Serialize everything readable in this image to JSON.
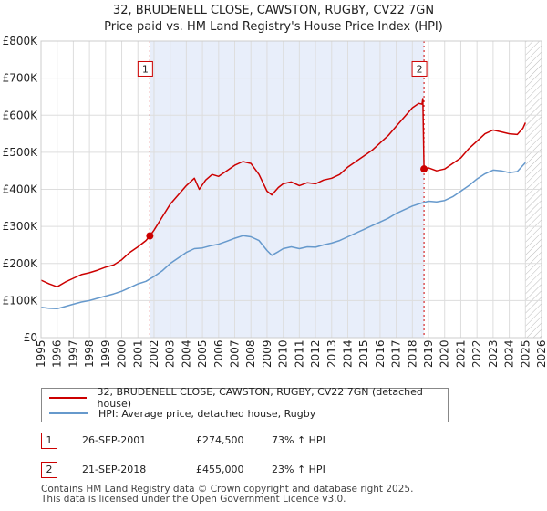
{
  "header": {
    "title": "32, BRUDENELL CLOSE, CAWSTON, RUGBY, CV22 7GN",
    "subtitle": "Price paid vs. HM Land Registry's House Price Index (HPI)"
  },
  "colors": {
    "property": "#cc0000",
    "hpi": "#6699cc",
    "shade": "#e8eefa",
    "grid": "#dddddd",
    "hatch": "#bbbbbb"
  },
  "chart_data": {
    "type": "line",
    "xlim": [
      1995,
      2026
    ],
    "ylim": [
      0,
      800000
    ],
    "grid": true,
    "y_ticks": [
      {
        "value": 0,
        "label": "£0"
      },
      {
        "value": 100000,
        "label": "£100K"
      },
      {
        "value": 200000,
        "label": "£200K"
      },
      {
        "value": 300000,
        "label": "£300K"
      },
      {
        "value": 400000,
        "label": "£400K"
      },
      {
        "value": 500000,
        "label": "£500K"
      },
      {
        "value": 600000,
        "label": "£600K"
      },
      {
        "value": 700000,
        "label": "£700K"
      },
      {
        "value": 800000,
        "label": "£800K"
      }
    ],
    "x_ticks": [
      "1995",
      "1996",
      "1997",
      "1998",
      "1999",
      "2000",
      "2001",
      "2002",
      "2003",
      "2004",
      "2005",
      "2006",
      "2007",
      "2008",
      "2009",
      "2010",
      "2011",
      "2012",
      "2013",
      "2014",
      "2015",
      "2016",
      "2017",
      "2018",
      "2019",
      "2020",
      "2021",
      "2022",
      "2023",
      "2024",
      "2025",
      "2026"
    ],
    "shaded_range": [
      2001.74,
      2018.72
    ],
    "hatch_from": 2025.0,
    "series": [
      {
        "name": "32, BRUDENELL CLOSE, CAWSTON, RUGBY, CV22 7GN (detached house)",
        "color": "#cc0000",
        "points": [
          [
            1995.0,
            155000
          ],
          [
            1995.5,
            145000
          ],
          [
            1996.0,
            137000
          ],
          [
            1996.5,
            150000
          ],
          [
            1997.0,
            160000
          ],
          [
            1997.5,
            170000
          ],
          [
            1998.0,
            175000
          ],
          [
            1998.5,
            182000
          ],
          [
            1999.0,
            190000
          ],
          [
            1999.5,
            196000
          ],
          [
            2000.0,
            210000
          ],
          [
            2000.5,
            230000
          ],
          [
            2001.0,
            245000
          ],
          [
            2001.5,
            262000
          ],
          [
            2001.74,
            274500
          ],
          [
            2002.0,
            290000
          ],
          [
            2002.5,
            325000
          ],
          [
            2003.0,
            360000
          ],
          [
            2003.5,
            385000
          ],
          [
            2004.0,
            410000
          ],
          [
            2004.5,
            430000
          ],
          [
            2004.8,
            400000
          ],
          [
            2005.2,
            425000
          ],
          [
            2005.6,
            440000
          ],
          [
            2006.0,
            435000
          ],
          [
            2006.5,
            450000
          ],
          [
            2007.0,
            465000
          ],
          [
            2007.5,
            475000
          ],
          [
            2008.0,
            470000
          ],
          [
            2008.5,
            440000
          ],
          [
            2009.0,
            395000
          ],
          [
            2009.3,
            385000
          ],
          [
            2009.7,
            405000
          ],
          [
            2010.0,
            415000
          ],
          [
            2010.5,
            420000
          ],
          [
            2011.0,
            410000
          ],
          [
            2011.5,
            418000
          ],
          [
            2012.0,
            415000
          ],
          [
            2012.5,
            425000
          ],
          [
            2013.0,
            430000
          ],
          [
            2013.5,
            440000
          ],
          [
            2014.0,
            460000
          ],
          [
            2014.5,
            475000
          ],
          [
            2015.0,
            490000
          ],
          [
            2015.5,
            505000
          ],
          [
            2016.0,
            525000
          ],
          [
            2016.5,
            545000
          ],
          [
            2017.0,
            570000
          ],
          [
            2017.5,
            595000
          ],
          [
            2018.0,
            620000
          ],
          [
            2018.4,
            632000
          ],
          [
            2018.6,
            630000
          ],
          [
            2018.65,
            645000
          ],
          [
            2018.72,
            455000
          ],
          [
            2019.0,
            458000
          ],
          [
            2019.5,
            450000
          ],
          [
            2020.0,
            455000
          ],
          [
            2020.5,
            470000
          ],
          [
            2021.0,
            485000
          ],
          [
            2021.5,
            510000
          ],
          [
            2022.0,
            530000
          ],
          [
            2022.5,
            550000
          ],
          [
            2023.0,
            560000
          ],
          [
            2023.5,
            555000
          ],
          [
            2024.0,
            550000
          ],
          [
            2024.5,
            548000
          ],
          [
            2024.85,
            565000
          ],
          [
            2025.0,
            580000
          ]
        ]
      },
      {
        "name": "HPI: Average price, detached house, Rugby",
        "color": "#6699cc",
        "points": [
          [
            1995.0,
            82000
          ],
          [
            1995.5,
            79000
          ],
          [
            1996.0,
            78000
          ],
          [
            1996.5,
            84000
          ],
          [
            1997.0,
            90000
          ],
          [
            1997.5,
            96000
          ],
          [
            1998.0,
            100000
          ],
          [
            1998.5,
            106000
          ],
          [
            1999.0,
            112000
          ],
          [
            1999.5,
            118000
          ],
          [
            2000.0,
            125000
          ],
          [
            2000.5,
            135000
          ],
          [
            2001.0,
            145000
          ],
          [
            2001.5,
            152000
          ],
          [
            2002.0,
            165000
          ],
          [
            2002.5,
            180000
          ],
          [
            2003.0,
            200000
          ],
          [
            2003.5,
            215000
          ],
          [
            2004.0,
            230000
          ],
          [
            2004.5,
            240000
          ],
          [
            2005.0,
            242000
          ],
          [
            2005.5,
            248000
          ],
          [
            2006.0,
            252000
          ],
          [
            2006.5,
            260000
          ],
          [
            2007.0,
            268000
          ],
          [
            2007.5,
            275000
          ],
          [
            2008.0,
            272000
          ],
          [
            2008.5,
            262000
          ],
          [
            2009.0,
            235000
          ],
          [
            2009.3,
            222000
          ],
          [
            2009.7,
            232000
          ],
          [
            2010.0,
            240000
          ],
          [
            2010.5,
            245000
          ],
          [
            2011.0,
            240000
          ],
          [
            2011.5,
            245000
          ],
          [
            2012.0,
            244000
          ],
          [
            2012.5,
            250000
          ],
          [
            2013.0,
            255000
          ],
          [
            2013.5,
            262000
          ],
          [
            2014.0,
            272000
          ],
          [
            2014.5,
            282000
          ],
          [
            2015.0,
            292000
          ],
          [
            2015.5,
            302000
          ],
          [
            2016.0,
            312000
          ],
          [
            2016.5,
            322000
          ],
          [
            2017.0,
            335000
          ],
          [
            2017.5,
            345000
          ],
          [
            2018.0,
            355000
          ],
          [
            2018.5,
            362000
          ],
          [
            2019.0,
            368000
          ],
          [
            2019.5,
            366000
          ],
          [
            2020.0,
            370000
          ],
          [
            2020.5,
            380000
          ],
          [
            2021.0,
            395000
          ],
          [
            2021.5,
            410000
          ],
          [
            2022.0,
            428000
          ],
          [
            2022.5,
            442000
          ],
          [
            2023.0,
            452000
          ],
          [
            2023.5,
            450000
          ],
          [
            2024.0,
            445000
          ],
          [
            2024.5,
            448000
          ],
          [
            2025.0,
            472000
          ]
        ]
      }
    ],
    "markers": [
      {
        "label": "1",
        "x": 2001.74,
        "y": 274500
      },
      {
        "label": "2",
        "x": 2018.72,
        "y": 455000
      }
    ],
    "marker_boxes_y": 725000
  },
  "legend": {
    "property_label": "32, BRUDENELL CLOSE, CAWSTON, RUGBY, CV22 7GN (detached house)",
    "hpi_label": "HPI: Average price, detached house, Rugby"
  },
  "sales": [
    {
      "num": "1",
      "date": "26-SEP-2001",
      "price": "£274,500",
      "hpi": "73% ↑ HPI"
    },
    {
      "num": "2",
      "date": "21-SEP-2018",
      "price": "£455,000",
      "hpi": "23% ↑ HPI"
    }
  ],
  "footer": {
    "line1": "Contains HM Land Registry data © Crown copyright and database right 2025.",
    "line2": "This data is licensed under the Open Government Licence v3.0."
  }
}
